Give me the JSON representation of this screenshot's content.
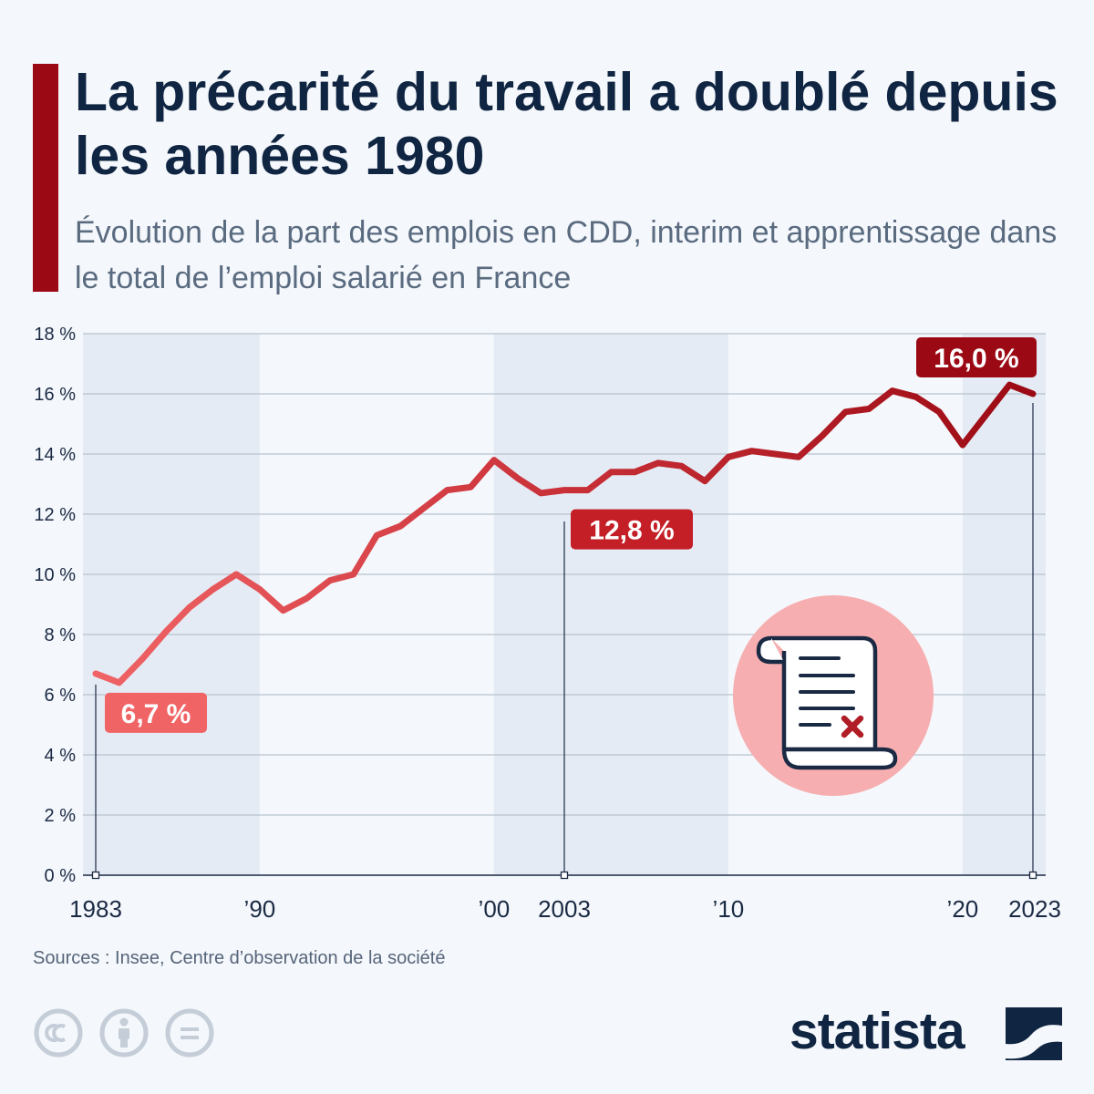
{
  "header": {
    "title": "La précarité du travail a doublé depuis les années 1980",
    "subtitle": "Évolution de la part des emplois en CDD, interim et apprentissage dans le total de l’emploi salarié en France"
  },
  "chart_data": {
    "type": "line",
    "x": [
      1983,
      1984,
      1985,
      1986,
      1987,
      1988,
      1989,
      1990,
      1991,
      1992,
      1993,
      1994,
      1995,
      1996,
      1997,
      1998,
      1999,
      2000,
      2001,
      2002,
      2003,
      2004,
      2005,
      2006,
      2007,
      2008,
      2009,
      2010,
      2011,
      2012,
      2013,
      2014,
      2015,
      2016,
      2017,
      2018,
      2019,
      2020,
      2021,
      2022,
      2023
    ],
    "series": [
      {
        "values": [
          6.7,
          6.4,
          7.2,
          8.1,
          8.9,
          9.5,
          10.0,
          9.5,
          8.8,
          9.2,
          9.8,
          10.0,
          11.3,
          11.6,
          12.2,
          12.8,
          12.9,
          13.8,
          13.2,
          12.7,
          12.8,
          12.8,
          13.4,
          13.4,
          13.7,
          13.6,
          13.1,
          13.9,
          14.1,
          14.0,
          13.9,
          14.6,
          15.4,
          15.5,
          16.1,
          15.9,
          15.4,
          14.3,
          15.3,
          16.3,
          16.0
        ]
      }
    ],
    "ylim": [
      0,
      18
    ],
    "y_ticks": [
      "0 %",
      "2 %",
      "4 %",
      "6 %",
      "8 %",
      "10 %",
      "12 %",
      "14 %",
      "16 %",
      "18 %"
    ],
    "x_tick_labels": [
      {
        "year": 1983,
        "label": "1983"
      },
      {
        "year": 1990,
        "label": "’90"
      },
      {
        "year": 2000,
        "label": "’00"
      },
      {
        "year": 2003,
        "label": "2003"
      },
      {
        "year": 2010,
        "label": "’10"
      },
      {
        "year": 2020,
        "label": "’20"
      },
      {
        "year": 2023,
        "label": "2023"
      }
    ],
    "shaded_decades": [
      [
        1983,
        1990
      ],
      [
        2000,
        2010
      ],
      [
        2020,
        2023
      ]
    ],
    "callouts": [
      {
        "year": 1983,
        "value": 6.7,
        "label": "6,7 %",
        "color": "#f06466"
      },
      {
        "year": 2003,
        "value": 12.8,
        "label": "12,8 %",
        "color": "#c41e26"
      },
      {
        "year": 2023,
        "value": 16.0,
        "label": "16,0 %",
        "color": "#9b0a14"
      }
    ],
    "grid": true,
    "line_gradient": [
      "#f06466",
      "#c93038",
      "#9b0a14"
    ],
    "title": "",
    "xlabel": "",
    "ylabel": ""
  },
  "footer": {
    "source": "Sources : Insee, Centre d’observation de la société",
    "brand": "statista",
    "license_icons": [
      "cc-icon",
      "by-icon",
      "nd-icon"
    ]
  },
  "colors": {
    "title": "#0f2542",
    "accent": "#9b0a14",
    "subtitle": "#5a6b80",
    "shade": "#e5ebf4",
    "illustration_circle": "#f6aeb0"
  }
}
